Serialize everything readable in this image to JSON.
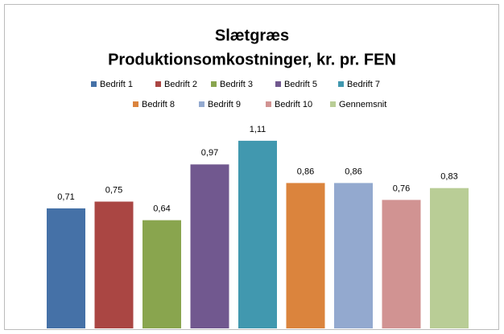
{
  "chart_data": {
    "type": "bar",
    "title": [
      "Slætgræs",
      "Produktionsomkostninger, kr. pr. FEN"
    ],
    "ylim": [
      0,
      1.3
    ],
    "series": [
      {
        "name": "Bedrift 1",
        "color": "#4571a7",
        "values": [
          0.71
        ],
        "value_labels": [
          "0,71"
        ]
      },
      {
        "name": "Bedrift 2",
        "color": "#aa4643",
        "values": [
          0.75
        ],
        "value_labels": [
          "0,75"
        ]
      },
      {
        "name": "Bedrift 3",
        "color": "#89a54e",
        "values": [
          0.64
        ],
        "value_labels": [
          "0,64"
        ]
      },
      {
        "name": "Bedrift 5",
        "color": "#71588f",
        "values": [
          0.97
        ],
        "value_labels": [
          "0,97"
        ]
      },
      {
        "name": "Bedrift 7",
        "color": "#4198af",
        "values": [
          1.11
        ],
        "value_labels": [
          "1,11"
        ]
      },
      {
        "name": "Bedrift 8",
        "color": "#db843d",
        "values": [
          0.86
        ],
        "value_labels": [
          "0,86"
        ]
      },
      {
        "name": "Bedrift 9",
        "color": "#93a9cf",
        "values": [
          0.86
        ],
        "value_labels": [
          "0,86"
        ]
      },
      {
        "name": "Bedrift 10",
        "color": "#d19392",
        "values": [
          0.76
        ],
        "value_labels": [
          "0,76"
        ]
      },
      {
        "name": "Gennemsnit",
        "color": "#b9cd96",
        "values": [
          0.83
        ],
        "value_labels": [
          "0,83"
        ]
      }
    ]
  }
}
